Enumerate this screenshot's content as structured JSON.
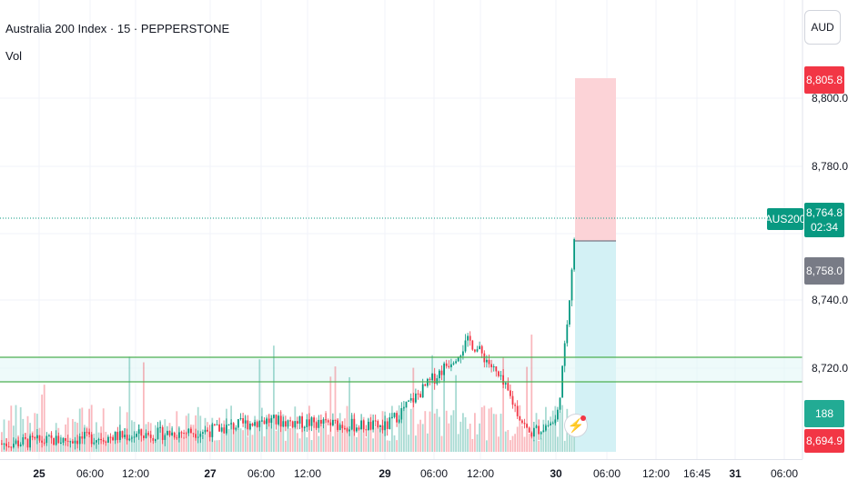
{
  "header": {
    "title": "Australia 200 Index · 15 · PEPPERSTONE",
    "indicator": "Vol",
    "currency": "AUD"
  },
  "price_axis": {
    "ticks": [
      "8,800.0",
      "8,780.0",
      "8,740.0",
      "8,720.0"
    ],
    "stop_price": "8,805.8",
    "symbol_tag": "AUS200",
    "current_price": "8,764.8",
    "countdown": "02:34",
    "entry_price": "8,758.0",
    "volume_value": "188",
    "low_price": "8,694.9"
  },
  "time_axis": {
    "labels": [
      {
        "text": "25",
        "day": true
      },
      {
        "text": "06:00",
        "day": false
      },
      {
        "text": "12:00",
        "day": false
      },
      {
        "text": "27",
        "day": true
      },
      {
        "text": "06:00",
        "day": false
      },
      {
        "text": "12:00",
        "day": false
      },
      {
        "text": "29",
        "day": true
      },
      {
        "text": "06:00",
        "day": false
      },
      {
        "text": "12:00",
        "day": false
      },
      {
        "text": "30",
        "day": true
      },
      {
        "text": "06:00",
        "day": false
      },
      {
        "text": "12:00",
        "day": false
      },
      {
        "text": "16:45",
        "day": false
      },
      {
        "text": "31",
        "day": true
      },
      {
        "text": "06:00",
        "day": false
      }
    ]
  },
  "colors": {
    "up": "#089981",
    "down": "#f23645",
    "support_line": "#4caf50",
    "stop_zone": "#fcd3d7",
    "target_zone": "#d3f1f5"
  },
  "chart_data": {
    "type": "candlestick",
    "symbol": "AUS200",
    "exchange": "PEPPERSTONE",
    "interval": "15",
    "ylim": [
      8694.9,
      8810
    ],
    "current_price": 8764.8,
    "position": {
      "type": "long",
      "entry": 8758.0,
      "stop": 8805.8,
      "target_zone_bottom": 8694.9
    },
    "horizontal_lines": [
      8722.5,
      8715.5
    ],
    "key_path": [
      {
        "t": "25",
        "price": 8697
      },
      {
        "t": "27 06:00",
        "price": 8702
      },
      {
        "t": "29",
        "price": 8702
      },
      {
        "t": "29 09:00",
        "price": 8728
      },
      {
        "t": "29 12:00",
        "price": 8716
      },
      {
        "t": "29 15:00",
        "price": 8700
      },
      {
        "t": "30",
        "price": 8704
      },
      {
        "t": "30 01:00",
        "price": 8723
      },
      {
        "t": "30 02:00",
        "price": 8764.8
      }
    ]
  }
}
